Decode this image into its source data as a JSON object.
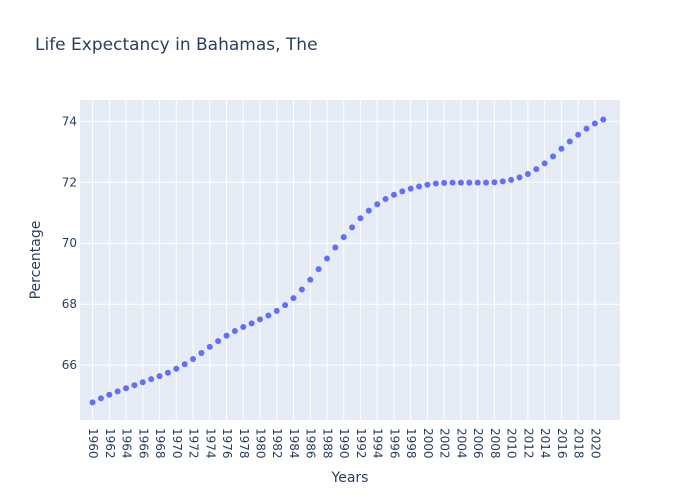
{
  "chart_data": {
    "type": "scatter",
    "title": "Life Expectancy in Bahamas, The",
    "xlabel": "Years",
    "ylabel": "Percentage",
    "xlim": [
      1958.5,
      2023
    ],
    "ylim": [
      64.2,
      74.7
    ],
    "x_ticks": [
      1960,
      1962,
      1964,
      1966,
      1968,
      1970,
      1972,
      1974,
      1976,
      1978,
      1980,
      1982,
      1984,
      1986,
      1988,
      1990,
      1992,
      1994,
      1996,
      1998,
      2000,
      2002,
      2004,
      2006,
      2008,
      2010,
      2012,
      2014,
      2016,
      2018,
      2020
    ],
    "y_ticks": [
      66,
      68,
      70,
      72,
      74
    ],
    "grid": true,
    "legend": "none",
    "marker_color": "#636efa",
    "background_color": "#e5ecf6",
    "x": [
      1960,
      1961,
      1962,
      1963,
      1964,
      1965,
      1966,
      1967,
      1968,
      1969,
      1970,
      1971,
      1972,
      1973,
      1974,
      1975,
      1976,
      1977,
      1978,
      1979,
      1980,
      1981,
      1982,
      1983,
      1984,
      1985,
      1986,
      1987,
      1988,
      1989,
      1990,
      1991,
      1992,
      1993,
      1994,
      1995,
      1996,
      1997,
      1998,
      1999,
      2000,
      2001,
      2002,
      2003,
      2004,
      2005,
      2006,
      2007,
      2008,
      2009,
      2010,
      2011,
      2012,
      2013,
      2014,
      2015,
      2016,
      2017,
      2018,
      2019,
      2020,
      2021
    ],
    "y": [
      64.78,
      64.91,
      65.03,
      65.14,
      65.24,
      65.34,
      65.44,
      65.54,
      65.64,
      65.75,
      65.88,
      66.03,
      66.2,
      66.4,
      66.6,
      66.79,
      66.97,
      67.12,
      67.25,
      67.37,
      67.5,
      67.63,
      67.78,
      67.97,
      68.2,
      68.48,
      68.8,
      69.15,
      69.5,
      69.86,
      70.2,
      70.52,
      70.82,
      71.07,
      71.28,
      71.45,
      71.59,
      71.7,
      71.79,
      71.86,
      71.92,
      71.96,
      71.98,
      71.99,
      71.99,
      71.99,
      71.99,
      71.99,
      72.0,
      72.03,
      72.08,
      72.16,
      72.27,
      72.43,
      72.62,
      72.85,
      73.1,
      73.34,
      73.56,
      73.76,
      73.93,
      74.06
    ]
  }
}
